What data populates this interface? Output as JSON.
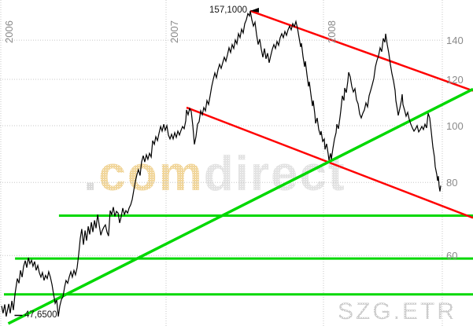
{
  "ticker": "SZG.ETR",
  "watermark": {
    "dot": ".",
    "com": "com",
    "direct": "direct"
  },
  "annotations": {
    "peak": "157,1000",
    "low": "47,6500"
  },
  "colors": {
    "price_line": "#000000",
    "trend_red": "#ff0000",
    "trend_green": "#00d800",
    "grid": "#c7c7c7",
    "axis_text": "#8a8a8a",
    "annotation_text": "#141414",
    "watermark_com": "#f1d69b",
    "watermark_gray": "#e3e3e3",
    "ticker_text": "#cdcdcd"
  },
  "chart_data": {
    "type": "line",
    "title": "SZG.ETR price chart 2006-2008 (log scale)",
    "x_ticks": [
      2006,
      2007,
      2008
    ],
    "x_tick_labels": [
      "2006",
      "2007",
      "2008"
    ],
    "y_ticks": [
      140,
      120,
      100,
      80,
      60
    ],
    "y_tick_labels": [
      "140",
      "120",
      "100",
      "80",
      "60"
    ],
    "y_scale": "log",
    "x_range": [
      2006.0,
      2008.95
    ],
    "grid": "dotted",
    "legend": "none",
    "peak_point": [
      2007.535,
      157.1
    ],
    "low_point": [
      2006.045,
      47.4
    ],
    "series": {
      "name": "price",
      "color": "#000000",
      "points": [
        [
          2006.005,
          49.2
        ],
        [
          2006.014,
          47.8
        ],
        [
          2006.024,
          49.5
        ],
        [
          2006.033,
          47.2
        ],
        [
          2006.048,
          49.6
        ],
        [
          2006.057,
          47.8
        ],
        [
          2006.067,
          50.2
        ],
        [
          2006.076,
          48.4
        ],
        [
          2006.086,
          51.6
        ],
        [
          2006.1,
          54.8
        ],
        [
          2006.11,
          53.8
        ],
        [
          2006.119,
          56.6
        ],
        [
          2006.129,
          55.1
        ],
        [
          2006.138,
          57.5
        ],
        [
          2006.148,
          58.8
        ],
        [
          2006.157,
          57.2
        ],
        [
          2006.167,
          59.5
        ],
        [
          2006.176,
          58.1
        ],
        [
          2006.186,
          58.9
        ],
        [
          2006.195,
          57.5
        ],
        [
          2006.205,
          58.6
        ],
        [
          2006.214,
          56.6
        ],
        [
          2006.224,
          57.7
        ],
        [
          2006.233,
          56.1
        ],
        [
          2006.243,
          55.1
        ],
        [
          2006.252,
          56.1
        ],
        [
          2006.262,
          54.4
        ],
        [
          2006.271,
          55.5
        ],
        [
          2006.281,
          54.8
        ],
        [
          2006.29,
          56.3
        ],
        [
          2006.3,
          55.1
        ],
        [
          2006.31,
          53.5
        ],
        [
          2006.319,
          51.6
        ],
        [
          2006.329,
          49.7
        ],
        [
          2006.338,
          50.4
        ],
        [
          2006.348,
          47.2
        ],
        [
          2006.357,
          49.2
        ],
        [
          2006.367,
          50.5
        ],
        [
          2006.376,
          51.0
        ],
        [
          2006.386,
          53.0
        ],
        [
          2006.395,
          54.4
        ],
        [
          2006.405,
          53.8
        ],
        [
          2006.414,
          55.1
        ],
        [
          2006.424,
          56.3
        ],
        [
          2006.433,
          55.1
        ],
        [
          2006.443,
          56.6
        ],
        [
          2006.452,
          55.6
        ],
        [
          2006.462,
          57.2
        ],
        [
          2006.471,
          60.1
        ],
        [
          2006.481,
          64.2
        ],
        [
          2006.49,
          66.6
        ],
        [
          2006.5,
          62.6
        ],
        [
          2006.51,
          66.2
        ],
        [
          2006.519,
          63.6
        ],
        [
          2006.529,
          67.3
        ],
        [
          2006.538,
          65.2
        ],
        [
          2006.548,
          68.4
        ],
        [
          2006.557,
          65.8
        ],
        [
          2006.567,
          68.9
        ],
        [
          2006.576,
          66.8
        ],
        [
          2006.586,
          70.5
        ],
        [
          2006.595,
          67.7
        ],
        [
          2006.605,
          65.0
        ],
        [
          2006.614,
          66.2
        ],
        [
          2006.624,
          67.1
        ],
        [
          2006.633,
          67.7
        ],
        [
          2006.643,
          65.8
        ],
        [
          2006.652,
          64.8
        ],
        [
          2006.662,
          71.6
        ],
        [
          2006.671,
          70.5
        ],
        [
          2006.681,
          72.6
        ],
        [
          2006.69,
          70.0
        ],
        [
          2006.7,
          71.4
        ],
        [
          2006.71,
          70.9
        ],
        [
          2006.719,
          68.2
        ],
        [
          2006.729,
          70.0
        ],
        [
          2006.738,
          72.3
        ],
        [
          2006.748,
          70.5
        ],
        [
          2006.757,
          71.6
        ],
        [
          2006.767,
          70.9
        ],
        [
          2006.776,
          72.3
        ],
        [
          2006.786,
          73.3
        ],
        [
          2006.795,
          74.8
        ],
        [
          2006.805,
          77.7
        ],
        [
          2006.814,
          80.2
        ],
        [
          2006.824,
          82.5
        ],
        [
          2006.833,
          84.1
        ],
        [
          2006.843,
          82.2
        ],
        [
          2006.852,
          86.7
        ],
        [
          2006.862,
          88.9
        ],
        [
          2006.871,
          86.7
        ],
        [
          2006.881,
          89.2
        ],
        [
          2006.89,
          87.6
        ],
        [
          2006.9,
          89.7
        ],
        [
          2006.91,
          88.4
        ],
        [
          2006.919,
          94.3
        ],
        [
          2006.929,
          92.9
        ],
        [
          2006.938,
          95.8
        ],
        [
          2006.948,
          94.3
        ],
        [
          2006.957,
          97.0
        ],
        [
          2006.967,
          99.7
        ],
        [
          2006.976,
          97.9
        ],
        [
          2006.986,
          100.6
        ],
        [
          2006.995,
          98.2
        ],
        [
          2007.005,
          100.0
        ],
        [
          2007.015,
          96.4
        ],
        [
          2007.025,
          94.9
        ],
        [
          2007.035,
          96.7
        ],
        [
          2007.045,
          94.9
        ],
        [
          2007.055,
          97.3
        ],
        [
          2007.065,
          95.5
        ],
        [
          2007.075,
          97.9
        ],
        [
          2007.085,
          96.4
        ],
        [
          2007.095,
          98.2
        ],
        [
          2007.105,
          99.7
        ],
        [
          2007.115,
          98.8
        ],
        [
          2007.125,
          101.9
        ],
        [
          2007.13,
          106.4
        ],
        [
          2007.14,
          104.4
        ],
        [
          2007.15,
          107.0
        ],
        [
          2007.16,
          105.7
        ],
        [
          2007.17,
          100.0
        ],
        [
          2007.18,
          92.9
        ],
        [
          2007.19,
          95.8
        ],
        [
          2007.2,
          100.6
        ],
        [
          2007.21,
          101.6
        ],
        [
          2007.22,
          106.0
        ],
        [
          2007.23,
          104.4
        ],
        [
          2007.24,
          107.4
        ],
        [
          2007.25,
          106.0
        ],
        [
          2007.26,
          110.4
        ],
        [
          2007.27,
          108.7
        ],
        [
          2007.28,
          112.5
        ],
        [
          2007.29,
          116.7
        ],
        [
          2007.3,
          120.0
        ],
        [
          2007.31,
          123.1
        ],
        [
          2007.32,
          120.8
        ],
        [
          2007.33,
          124.6
        ],
        [
          2007.34,
          127.3
        ],
        [
          2007.35,
          125.3
        ],
        [
          2007.36,
          128.1
        ],
        [
          2007.37,
          130.9
        ],
        [
          2007.38,
          128.9
        ],
        [
          2007.39,
          132.1
        ],
        [
          2007.4,
          135.9
        ],
        [
          2007.41,
          133.4
        ],
        [
          2007.42,
          137.6
        ],
        [
          2007.43,
          135.5
        ],
        [
          2007.44,
          140.1
        ],
        [
          2007.45,
          138.0
        ],
        [
          2007.46,
          143.6
        ],
        [
          2007.47,
          141.4
        ],
        [
          2007.48,
          146.2
        ],
        [
          2007.49,
          144.0
        ],
        [
          2007.5,
          149.4
        ],
        [
          2007.51,
          151.7
        ],
        [
          2007.52,
          155.5
        ],
        [
          2007.53,
          154.0
        ],
        [
          2007.535,
          157.1
        ],
        [
          2007.545,
          151.7
        ],
        [
          2007.555,
          148.0
        ],
        [
          2007.565,
          150.3
        ],
        [
          2007.575,
          143.1
        ],
        [
          2007.585,
          137.6
        ],
        [
          2007.595,
          140.6
        ],
        [
          2007.605,
          135.1
        ],
        [
          2007.615,
          130.9
        ],
        [
          2007.625,
          135.5
        ],
        [
          2007.635,
          130.1
        ],
        [
          2007.645,
          133.0
        ],
        [
          2007.655,
          128.1
        ],
        [
          2007.665,
          131.7
        ],
        [
          2007.675,
          135.1
        ],
        [
          2007.685,
          137.6
        ],
        [
          2007.695,
          135.5
        ],
        [
          2007.705,
          139.3
        ],
        [
          2007.715,
          137.2
        ],
        [
          2007.725,
          141.4
        ],
        [
          2007.735,
          143.6
        ],
        [
          2007.745,
          141.4
        ],
        [
          2007.755,
          144.9
        ],
        [
          2007.765,
          142.7
        ],
        [
          2007.775,
          145.8
        ],
        [
          2007.785,
          148.0
        ],
        [
          2007.795,
          145.8
        ],
        [
          2007.805,
          149.4
        ],
        [
          2007.815,
          147.6
        ],
        [
          2007.825,
          150.7
        ],
        [
          2007.835,
          146.7
        ],
        [
          2007.845,
          141.4
        ],
        [
          2007.855,
          136.3
        ],
        [
          2007.86,
          138.4
        ],
        [
          2007.87,
          131.3
        ],
        [
          2007.88,
          126.1
        ],
        [
          2007.885,
          128.9
        ],
        [
          2007.895,
          122.3
        ],
        [
          2007.905,
          116.7
        ],
        [
          2007.91,
          118.9
        ],
        [
          2007.92,
          113.2
        ],
        [
          2007.93,
          108.0
        ],
        [
          2007.935,
          110.4
        ],
        [
          2007.945,
          104.7
        ],
        [
          2007.95,
          100.9
        ],
        [
          2007.96,
          103.1
        ],
        [
          2007.97,
          98.5
        ],
        [
          2007.98,
          96.4
        ],
        [
          2007.985,
          97.9
        ],
        [
          2007.995,
          94.0
        ],
        [
          2008.005,
          94.9
        ],
        [
          2008.01,
          91.1
        ],
        [
          2008.02,
          93.1
        ],
        [
          2008.03,
          89.5
        ],
        [
          2008.035,
          87.3
        ],
        [
          2008.045,
          89.7
        ],
        [
          2008.05,
          87.6
        ],
        [
          2008.06,
          91.4
        ],
        [
          2008.07,
          94.9
        ],
        [
          2008.08,
          97.3
        ],
        [
          2008.085,
          100.6
        ],
        [
          2008.095,
          98.8
        ],
        [
          2008.105,
          103.4
        ],
        [
          2008.11,
          106.0
        ],
        [
          2008.12,
          112.5
        ],
        [
          2008.13,
          110.4
        ],
        [
          2008.135,
          116.0
        ],
        [
          2008.145,
          113.9
        ],
        [
          2008.155,
          119.3
        ],
        [
          2008.16,
          123.4
        ],
        [
          2008.17,
          121.2
        ],
        [
          2008.18,
          116.7
        ],
        [
          2008.19,
          114.2
        ],
        [
          2008.2,
          115.7
        ],
        [
          2008.21,
          110.7
        ],
        [
          2008.22,
          109.0
        ],
        [
          2008.23,
          104.7
        ],
        [
          2008.24,
          103.1
        ],
        [
          2008.25,
          105.0
        ],
        [
          2008.26,
          106.4
        ],
        [
          2008.27,
          109.4
        ],
        [
          2008.28,
          107.7
        ],
        [
          2008.29,
          112.5
        ],
        [
          2008.3,
          114.9
        ],
        [
          2008.31,
          117.5
        ],
        [
          2008.32,
          120.4
        ],
        [
          2008.33,
          126.1
        ],
        [
          2008.34,
          129.3
        ],
        [
          2008.35,
          131.7
        ],
        [
          2008.36,
          135.9
        ],
        [
          2008.37,
          133.8
        ],
        [
          2008.38,
          141.0
        ],
        [
          2008.39,
          138.8
        ],
        [
          2008.395,
          143.6
        ],
        [
          2008.405,
          137.6
        ],
        [
          2008.415,
          133.0
        ],
        [
          2008.425,
          127.3
        ],
        [
          2008.435,
          122.7
        ],
        [
          2008.445,
          119.3
        ],
        [
          2008.455,
          114.9
        ],
        [
          2008.46,
          110.4
        ],
        [
          2008.47,
          106.4
        ],
        [
          2008.475,
          104.1
        ],
        [
          2008.485,
          107.0
        ],
        [
          2008.495,
          110.4
        ],
        [
          2008.5,
          113.2
        ],
        [
          2008.505,
          108.7
        ],
        [
          2008.515,
          106.4
        ],
        [
          2008.525,
          103.8
        ],
        [
          2008.535,
          105.4
        ],
        [
          2008.545,
          102.5
        ],
        [
          2008.555,
          100.6
        ],
        [
          2008.565,
          99.1
        ],
        [
          2008.575,
          97.9
        ],
        [
          2008.585,
          98.8
        ],
        [
          2008.595,
          100.0
        ],
        [
          2008.605,
          97.6
        ],
        [
          2008.615,
          98.5
        ],
        [
          2008.625,
          99.7
        ],
        [
          2008.635,
          98.5
        ],
        [
          2008.645,
          100.6
        ],
        [
          2008.655,
          99.1
        ],
        [
          2008.665,
          105.0
        ],
        [
          2008.675,
          103.1
        ],
        [
          2008.685,
          97.6
        ],
        [
          2008.695,
          92.0
        ],
        [
          2008.705,
          88.4
        ],
        [
          2008.71,
          85.1
        ],
        [
          2008.72,
          82.5
        ],
        [
          2008.725,
          80.5
        ],
        [
          2008.73,
          82.0
        ],
        [
          2008.735,
          78.7
        ],
        [
          2008.74,
          77.2
        ],
        [
          2008.745,
          79.0
        ]
      ]
    },
    "trendlines": [
      {
        "name": "falling-resistance-upper",
        "color": "#ff0000",
        "width": 2.5,
        "from": [
          2007.535,
          157.1
        ],
        "to": [
          2008.95,
          114.7
        ]
      },
      {
        "name": "falling-resistance-lower",
        "color": "#ff0000",
        "width": 2.5,
        "from": [
          2007.13,
          107.4
        ],
        "to": [
          2008.95,
          69.6
        ]
      },
      {
        "name": "rising-support",
        "color": "#00d800",
        "width": 3.5,
        "from": [
          2006.045,
          45.9
        ],
        "to": [
          2008.95,
          115.5
        ]
      }
    ],
    "support_levels": [
      {
        "value": 70.2,
        "from": 2006.352
      },
      {
        "value": 59.3,
        "from": 2006.086
      },
      {
        "value": 51.5,
        "from": 2006.019
      }
    ]
  }
}
